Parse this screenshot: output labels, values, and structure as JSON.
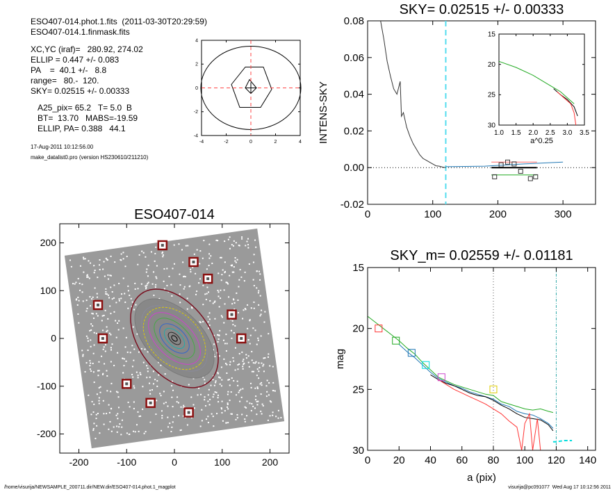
{
  "header": {
    "line1": "ESO407-014.phot.1.fits  (2011-03-30T20:29:59)",
    "line2": "ESO407-014.1.finmask.fits",
    "line3": "XC,YC (iraf)=   280.92, 274.02",
    "line4": "ELLIP = 0.447 +/- 0.083",
    "line5": "PA    =  40.1 +/-   8.8",
    "line6": "range=   80.-  120.",
    "line7": "SKY= 0.02515 +/- 0.00333",
    "line8": "A25_pix= 65.2   T= 5.0  B",
    "line9": "BT=  13.70   MABS=-19.59",
    "line10": "ELLIP, PA= 0.388   44.1",
    "date": "17-Aug-2011 10:12:56.00",
    "program": "make_datalist0.pro (version HS230610/211210)"
  },
  "footer": {
    "path": "/home/visurija/NEWSAMPLE_200711.dir/NEW.dir/ESO407-014.phot.1_magplot",
    "user": "visurija@pc091077  Wed Aug 17 10:12:56 2011"
  },
  "chart_data": [
    {
      "type": "line",
      "name": "center-contour",
      "xlim": [
        -4,
        4
      ],
      "ylim": [
        -4,
        4
      ],
      "xticks": [
        "-4",
        "-2",
        "0",
        "2",
        "4"
      ],
      "yticks": [
        "-4",
        "-2",
        "0",
        "2",
        "4"
      ],
      "crosshair": [
        0,
        0
      ]
    },
    {
      "type": "line",
      "title": "SKY= 0.02515 +/- 0.00333",
      "xlabel": "",
      "ylabel": "INTENS-SKY",
      "xlim": [
        0,
        350
      ],
      "ylim": [
        -0.02,
        0.08
      ],
      "xticks": [
        "0",
        "100",
        "200",
        "300"
      ],
      "yticks": [
        "-0.02",
        "0.00",
        "0.02",
        "0.04",
        "0.06",
        "0.08"
      ],
      "sky_line_x": 120,
      "profile": {
        "x": [
          20,
          25,
          30,
          35,
          40,
          45,
          50,
          52,
          55,
          60,
          65,
          70,
          75,
          80,
          85,
          90,
          95,
          100,
          105,
          110,
          115,
          120
        ],
        "y": [
          0.08,
          0.07,
          0.058,
          0.05,
          0.043,
          0.04,
          0.047,
          0.028,
          0.03,
          0.022,
          0.017,
          0.013,
          0.01,
          0.007,
          0.005,
          0.004,
          0.003,
          0.002,
          0.001,
          0.0008,
          0.0003,
          0.0
        ]
      },
      "sky_series": [
        {
          "color": "#1f77b4",
          "x": [
            120,
            180,
            240,
            300
          ],
          "y": [
            0.0005,
            0.0008,
            0.002,
            0.003
          ]
        },
        {
          "color": "#22aa22",
          "x": [
            190,
            260
          ],
          "y": [
            -0.004,
            -0.004
          ]
        },
        {
          "color": "#ff6666",
          "x": [
            190,
            260
          ],
          "y": [
            0.003,
            0.003
          ]
        },
        {
          "color": "#000000",
          "x": [
            190,
            260
          ],
          "y": [
            0.0,
            0.0
          ]
        }
      ],
      "sky_boxes": {
        "x": [
          195,
          205,
          215,
          225,
          235,
          250,
          258
        ],
        "y": [
          -0.005,
          0.0015,
          0.003,
          0.002,
          -0.002,
          -0.006,
          -0.005
        ]
      },
      "inset": {
        "xlabel": "a^0.25",
        "xlim": [
          1.0,
          3.5
        ],
        "ylim": [
          15,
          30
        ],
        "xticks": [
          "1.0",
          "1.5",
          "2.0",
          "2.5",
          "3.0",
          "3.5"
        ],
        "yticks": [
          "15",
          "20",
          "25",
          "30"
        ],
        "series": [
          {
            "color": "#22aa22",
            "x": [
              1.0,
              1.5,
              2.0,
              2.5,
              2.8,
              3.0,
              3.1,
              3.2
            ],
            "y": [
              19.5,
              20.5,
              21.8,
              23.5,
              24.5,
              25.5,
              26,
              26.5
            ]
          },
          {
            "color": "#000000",
            "x": [
              2.6,
              2.8,
              3.0,
              3.2,
              3.3
            ],
            "y": [
              24,
              25,
              25.8,
              27,
              28.5
            ]
          },
          {
            "color": "#ff3333",
            "x": [
              2.7,
              2.9,
              3.1,
              3.2,
              3.25
            ],
            "y": [
              24.5,
              25.5,
              26.5,
              28,
              30
            ]
          }
        ]
      }
    },
    {
      "type": "scatter",
      "title": "ESO407-014",
      "xlim": [
        -240,
        240
      ],
      "ylim": [
        -240,
        240
      ],
      "xticks": [
        "-200",
        "-100",
        "0",
        "100",
        "200"
      ],
      "yticks": [
        "-200",
        "-100",
        "0",
        "100",
        "200"
      ],
      "boxes": {
        "x": [
          -25,
          40,
          70,
          -160,
          -150,
          120,
          140,
          -100,
          -50,
          30
        ],
        "y": [
          195,
          160,
          125,
          70,
          0,
          50,
          0,
          -95,
          -135,
          -155
        ]
      }
    },
    {
      "type": "line",
      "title": "SKY_m=  0.02559 +/- 0.01181",
      "xlabel": "a (pix)",
      "ylabel": "mag",
      "xlim": [
        0,
        145
      ],
      "ylim": [
        15,
        30
      ],
      "xticks": [
        "0",
        "20",
        "40",
        "60",
        "80",
        "100",
        "120",
        "140"
      ],
      "yticks": [
        "15",
        "20",
        "25",
        "30"
      ],
      "vlines": [
        80,
        120
      ],
      "series": [
        {
          "color": "#22aa22",
          "x": [
            0,
            5,
            10,
            15,
            20,
            25,
            30,
            35,
            40,
            45,
            50,
            55,
            60,
            65,
            70,
            75,
            80,
            85,
            90,
            95,
            100,
            105,
            110,
            115,
            118
          ],
          "y": [
            19.0,
            19.5,
            20.0,
            20.5,
            21.0,
            21.6,
            22.1,
            22.8,
            23.4,
            24.0,
            24.3,
            24.6,
            24.8,
            25.0,
            25.2,
            25.4,
            25.5,
            26.0,
            26.2,
            26.4,
            26.6,
            26.7,
            26.6,
            26.8,
            26.9
          ]
        },
        {
          "color": "#1f77b4",
          "x": [
            20,
            25,
            30,
            35,
            40,
            45,
            50,
            55,
            60,
            65,
            70,
            75,
            80,
            85,
            90,
            95,
            100,
            105,
            110,
            115,
            118
          ],
          "y": [
            21.3,
            21.9,
            22.4,
            23.0,
            23.6,
            24.1,
            24.4,
            24.7,
            24.9,
            25.2,
            25.4,
            25.6,
            25.8,
            26.2,
            26.4,
            26.8,
            27.0,
            27.1,
            27.4,
            27.8,
            28.2
          ]
        },
        {
          "color": "#000000",
          "x": [
            40,
            45,
            50,
            55,
            60,
            65,
            70,
            75,
            80,
            85,
            90,
            95,
            100,
            105,
            110,
            115,
            118
          ],
          "y": [
            23.8,
            24.2,
            24.5,
            24.7,
            25.0,
            25.3,
            25.5,
            25.6,
            25.9,
            26.3,
            26.6,
            27.0,
            27.3,
            27.4,
            27.5,
            27.9,
            28.4
          ]
        },
        {
          "color": "#ff3333",
          "x": [
            45,
            50,
            55,
            60,
            65,
            70,
            75,
            80,
            85,
            90,
            95,
            98,
            100,
            103,
            105,
            108,
            110
          ],
          "y": [
            24.2,
            24.6,
            25.0,
            25.3,
            25.6,
            25.9,
            26.2,
            26.6,
            27.0,
            27.6,
            28.1,
            30,
            27.8,
            27.0,
            30,
            27.4,
            30
          ]
        },
        {
          "color": "#00dddd",
          "x": [
            118,
            120,
            125,
            130
          ],
          "y": [
            29.3,
            29.3,
            29.2,
            29.2
          ]
        }
      ],
      "boxes": [
        {
          "color": "#ff3333",
          "x": 7,
          "y": 20.0
        },
        {
          "color": "#22aa22",
          "x": 18,
          "y": 21.0
        },
        {
          "color": "#1f77b4",
          "x": 28,
          "y": 22.0
        },
        {
          "color": "#00dddd",
          "x": 37,
          "y": 23.0
        },
        {
          "color": "#cc44cc",
          "x": 47,
          "y": 24.0
        },
        {
          "color": "#ddcc00",
          "x": 80,
          "y": 25.0
        }
      ]
    }
  ]
}
